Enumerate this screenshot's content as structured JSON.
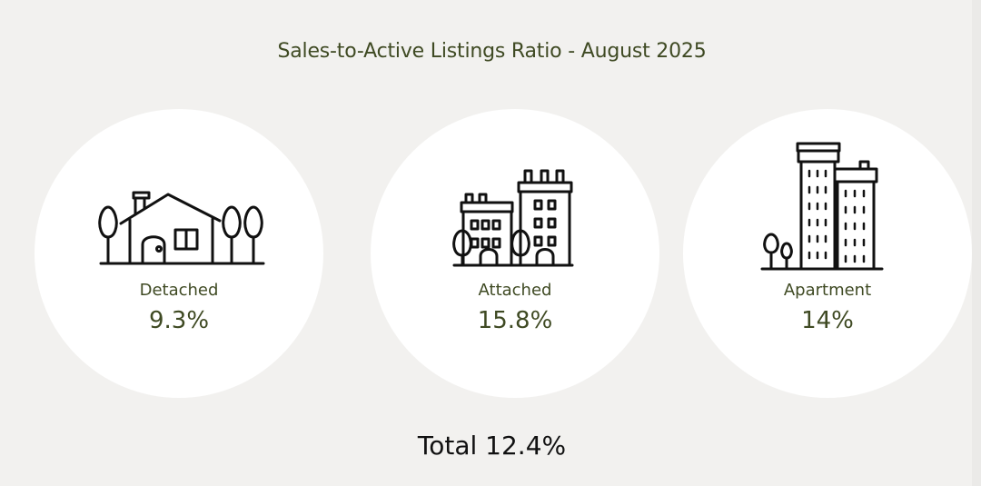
{
  "title": "Sales-to-Active Listings Ratio - August 2025",
  "categories": [
    {
      "label": "Detached",
      "value": "9.3%",
      "icon": "detached-house-icon"
    },
    {
      "label": "Attached",
      "value": "15.8%",
      "icon": "townhouse-icon"
    },
    {
      "label": "Apartment",
      "value": "14%",
      "icon": "apartment-building-icon"
    }
  ],
  "total": {
    "label": "Total",
    "value": "12.4%",
    "text": "Total 12.4%"
  },
  "colors": {
    "background": "#f2f1ef",
    "card": "#ffffff",
    "accent_text": "#3f4a23",
    "total_text": "#111111",
    "icon_stroke": "#111111"
  }
}
